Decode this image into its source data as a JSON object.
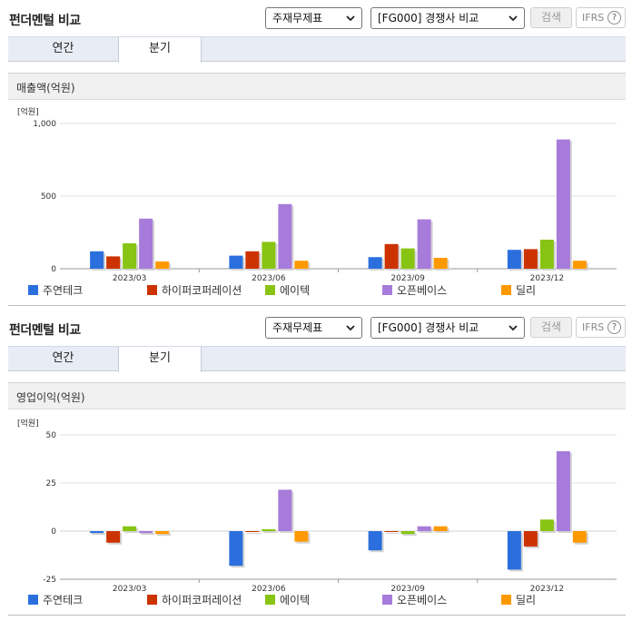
{
  "colors": [
    "#2b6fde",
    "#cc3300",
    "#88c414",
    "#a77bd9",
    "#ff9900"
  ],
  "series_names": [
    "주연테크",
    "하이퍼코퍼레이션",
    "에이텍",
    "오픈베이스",
    "딜리"
  ],
  "sections": [
    {
      "title": "펀더멘털 비교",
      "select1": "주재무제표",
      "select2": "[FG000] 경쟁사 비교",
      "search_label": "검색",
      "ifrs_label": "IFRS",
      "help_symbol": "?",
      "tabs": [
        "연간",
        "분기"
      ],
      "panel_title": "매출액(억원)",
      "chart_data": {
        "type": "bar",
        "title": "매출액(억원)",
        "unit": "[억원]",
        "categories": [
          "2023/03",
          "2023/06",
          "2023/09",
          "2023/12"
        ],
        "ylim": [
          0,
          1000
        ],
        "yticks": [
          0,
          500,
          1000
        ],
        "ytick_labels": [
          "0",
          "500",
          "1,000"
        ],
        "series": [
          {
            "name": "주연테크",
            "values": [
              120,
              90,
              80,
              130
            ]
          },
          {
            "name": "하이퍼코퍼레이션",
            "values": [
              85,
              120,
              170,
              135
            ]
          },
          {
            "name": "에이텍",
            "values": [
              175,
              185,
              140,
              200
            ]
          },
          {
            "name": "오픈베이스",
            "values": [
              345,
              445,
              340,
              890
            ]
          },
          {
            "name": "딜리",
            "values": [
              50,
              55,
              75,
              55
            ]
          }
        ]
      }
    },
    {
      "title": "펀더멘털 비교",
      "select1": "주재무제표",
      "select2": "[FG000] 경쟁사 비교",
      "search_label": "검색",
      "ifrs_label": "IFRS",
      "help_symbol": "?",
      "tabs": [
        "연간",
        "분기"
      ],
      "panel_title": "영업이익(억원)",
      "chart_data": {
        "type": "bar",
        "title": "영업이익(억원)",
        "unit": "[억원]",
        "categories": [
          "2023/03",
          "2023/06",
          "2023/09",
          "2023/12"
        ],
        "ylim": [
          -25,
          50
        ],
        "yticks": [
          -25,
          0,
          25,
          50
        ],
        "ytick_labels": [
          "-25",
          "0",
          "25",
          "50"
        ],
        "series": [
          {
            "name": "주연테크",
            "values": [
              -1,
              -18,
              -10,
              -20
            ]
          },
          {
            "name": "하이퍼코퍼레이션",
            "values": [
              -6,
              0,
              0,
              -8
            ]
          },
          {
            "name": "에이텍",
            "values": [
              2.5,
              1,
              -1.5,
              6
            ]
          },
          {
            "name": "오픈베이스",
            "values": [
              -1,
              21.5,
              2.5,
              41.5
            ]
          },
          {
            "name": "딜리",
            "values": [
              -1.5,
              -5.5,
              2.5,
              -6
            ]
          }
        ]
      }
    }
  ]
}
